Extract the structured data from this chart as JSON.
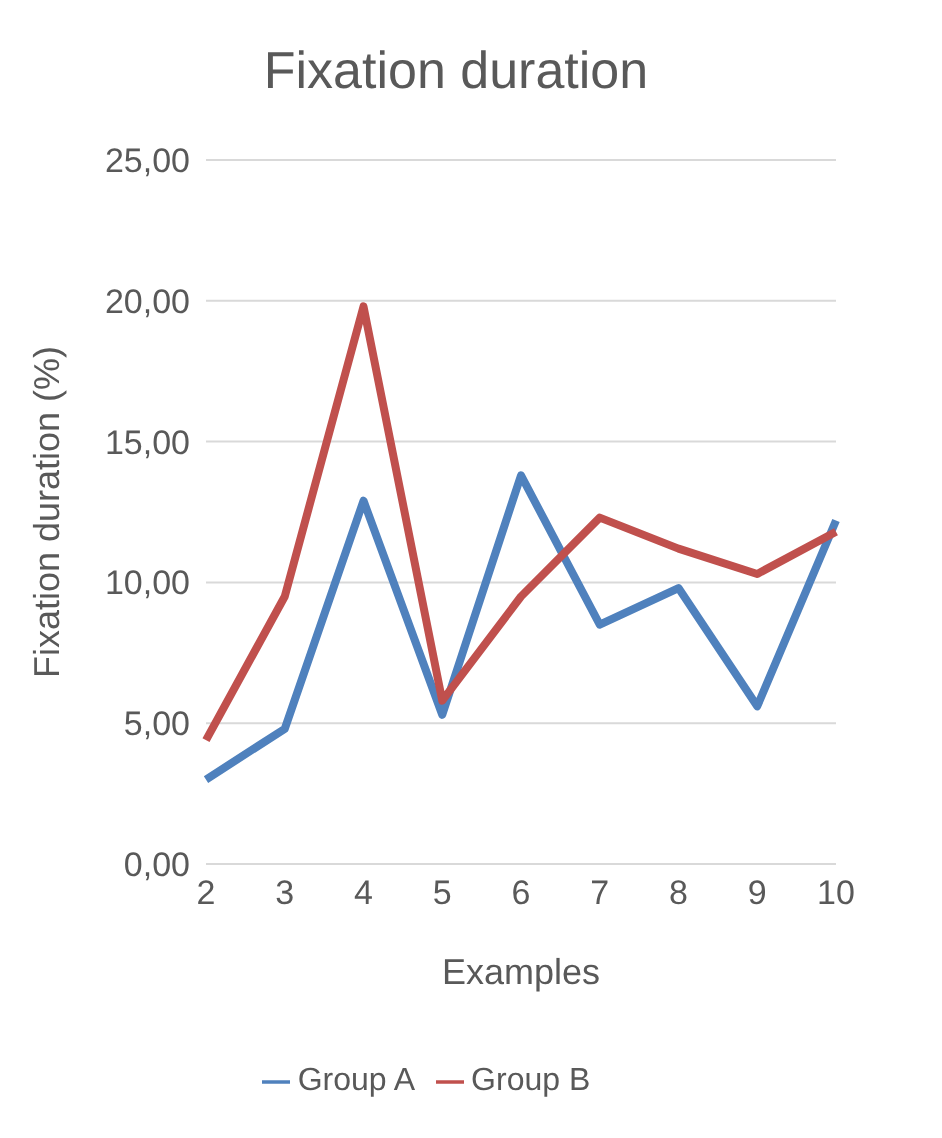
{
  "chart_data": {
    "type": "line",
    "title": "Fixation duration",
    "xlabel": "Examples",
    "ylabel": "Fixation duration (%)",
    "categories": [
      "2",
      "3",
      "4",
      "5",
      "6",
      "7",
      "8",
      "9",
      "10"
    ],
    "series": [
      {
        "name": "Group A",
        "color": "#4f81bd",
        "values": [
          3.0,
          4.8,
          12.9,
          5.3,
          13.8,
          8.5,
          9.8,
          5.6,
          12.2
        ]
      },
      {
        "name": "Group B",
        "color": "#c0504d",
        "values": [
          4.4,
          9.5,
          19.8,
          5.8,
          9.5,
          12.3,
          11.2,
          10.3,
          11.8
        ]
      }
    ],
    "ylim": [
      0,
      25
    ],
    "yticks": [
      {
        "value": 0,
        "label": "0,00"
      },
      {
        "value": 5,
        "label": "5,00"
      },
      {
        "value": 10,
        "label": "10,00"
      },
      {
        "value": 15,
        "label": "15,00"
      },
      {
        "value": 20,
        "label": "20,00"
      },
      {
        "value": 25,
        "label": "25,00"
      }
    ],
    "grid": "y",
    "legend": "bottom",
    "marker": "none",
    "line_style": "solid"
  }
}
